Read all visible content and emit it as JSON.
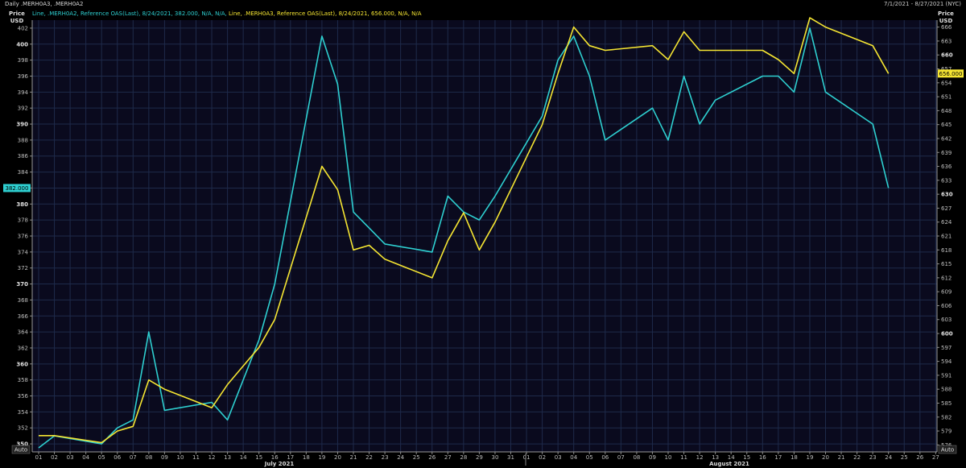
{
  "header": {
    "title": "Daily .MERH0A3, .MERH0A2",
    "date_range": "7/1/2021 - 8/27/2021 (NYC)"
  },
  "legend": {
    "line1": "Line, .MERH0A2, Reference OAS(Last), 8/24/2021, 382.000, N/A, N/A,",
    "line2": "Line, .MERH0A3, Reference OAS(Last), 8/24/2021, 656.000, N/A, N/A"
  },
  "axes": {
    "left_title_1": "Price",
    "left_title_2": "USD",
    "right_title_1": "Price",
    "right_title_2": "USD",
    "auto_left": "Auto",
    "auto_right": "Auto",
    "month_labels": [
      "July 2021",
      "August 2021"
    ]
  },
  "chart_data": {
    "type": "line",
    "colors": {
      "MERH0A2": "#2ecfd0",
      "MERH0A3": "#f5e532",
      "background": "#0a0a1e",
      "grid": "#1e2a4a"
    },
    "x_labels": [
      "01",
      "02",
      "03",
      "04",
      "05",
      "06",
      "07",
      "08",
      "09",
      "10",
      "11",
      "12",
      "13",
      "14",
      "15",
      "16",
      "17",
      "18",
      "19",
      "20",
      "21",
      "22",
      "23",
      "24",
      "25",
      "26",
      "27",
      "28",
      "29",
      "30",
      "31",
      "01",
      "02",
      "03",
      "04",
      "05",
      "06",
      "07",
      "08",
      "09",
      "10",
      "11",
      "12",
      "13",
      "14",
      "15",
      "16",
      "17",
      "18",
      "19",
      "20",
      "21",
      "22",
      "23",
      "24",
      "25",
      "26",
      "27"
    ],
    "left_axis": {
      "ylim": [
        349,
        403
      ],
      "ticks": [
        350,
        352,
        354,
        356,
        358,
        360,
        362,
        364,
        366,
        368,
        370,
        372,
        374,
        376,
        378,
        380,
        382,
        384,
        386,
        388,
        390,
        392,
        394,
        396,
        398,
        400,
        402
      ],
      "bold_ticks": [
        350,
        360,
        370,
        380,
        390,
        400
      ]
    },
    "right_axis": {
      "ylim": [
        574.5,
        667.5
      ],
      "ticks": [
        576,
        579,
        582,
        585,
        588,
        591,
        594,
        597,
        600,
        603,
        606,
        609,
        612,
        615,
        618,
        621,
        624,
        627,
        630,
        633,
        636,
        639,
        642,
        645,
        648,
        651,
        654,
        657,
        660,
        663,
        666
      ],
      "bold_ticks": [
        600,
        630,
        660
      ]
    },
    "series": [
      {
        "name": ".MERH0A2",
        "axis": "left",
        "last_value_label": "382.000",
        "points": [
          [
            "07-01",
            349.5
          ],
          [
            "07-02",
            351
          ],
          [
            "07-05",
            350
          ],
          [
            "07-06",
            352
          ],
          [
            "07-07",
            353
          ],
          [
            "07-08",
            364
          ],
          [
            "07-09",
            354.2
          ],
          [
            "07-12",
            355.2
          ],
          [
            "07-13",
            353
          ],
          [
            "07-14",
            358
          ],
          [
            "07-15",
            363
          ],
          [
            "07-16",
            370
          ],
          [
            "07-19",
            401
          ],
          [
            "07-20",
            395
          ],
          [
            "07-21",
            379
          ],
          [
            "07-22",
            377
          ],
          [
            "07-23",
            375
          ],
          [
            "07-26",
            374
          ],
          [
            "07-27",
            381
          ],
          [
            "07-28",
            379
          ],
          [
            "07-29",
            378
          ],
          [
            "07-30",
            381
          ],
          [
            "08-02",
            391
          ],
          [
            "08-03",
            398
          ],
          [
            "08-04",
            401
          ],
          [
            "08-05",
            396
          ],
          [
            "08-06",
            388
          ],
          [
            "08-09",
            392
          ],
          [
            "08-10",
            388
          ],
          [
            "08-11",
            396
          ],
          [
            "08-12",
            390
          ],
          [
            "08-13",
            393
          ],
          [
            "08-16",
            396
          ],
          [
            "08-17",
            396
          ],
          [
            "08-18",
            394
          ],
          [
            "08-19",
            402
          ],
          [
            "08-20",
            394
          ],
          [
            "08-23",
            390
          ],
          [
            "08-24",
            382
          ]
        ]
      },
      {
        "name": ".MERH0A3",
        "axis": "right",
        "last_value_label": "656.000",
        "points": [
          [
            "07-01",
            578
          ],
          [
            "07-02",
            578
          ],
          [
            "07-05",
            576.5
          ],
          [
            "07-06",
            579
          ],
          [
            "07-07",
            580
          ],
          [
            "07-08",
            590
          ],
          [
            "07-09",
            588
          ],
          [
            "07-12",
            584
          ],
          [
            "07-13",
            589
          ],
          [
            "07-14",
            593
          ],
          [
            "07-15",
            597
          ],
          [
            "07-16",
            603
          ],
          [
            "07-19",
            636
          ],
          [
            "07-20",
            631
          ],
          [
            "07-21",
            618
          ],
          [
            "07-22",
            619
          ],
          [
            "07-23",
            616
          ],
          [
            "07-26",
            612
          ],
          [
            "07-27",
            620
          ],
          [
            "07-28",
            626
          ],
          [
            "07-29",
            618
          ],
          [
            "07-30",
            624
          ],
          [
            "08-02",
            645
          ],
          [
            "08-03",
            656
          ],
          [
            "08-04",
            666
          ],
          [
            "08-05",
            662
          ],
          [
            "08-06",
            661
          ],
          [
            "08-09",
            662
          ],
          [
            "08-10",
            659
          ],
          [
            "08-11",
            665
          ],
          [
            "08-12",
            661
          ],
          [
            "08-13",
            661
          ],
          [
            "08-16",
            661
          ],
          [
            "08-17",
            659
          ],
          [
            "08-18",
            656
          ],
          [
            "08-19",
            668
          ],
          [
            "08-20",
            666
          ],
          [
            "08-23",
            662
          ],
          [
            "08-24",
            656
          ]
        ]
      }
    ]
  }
}
